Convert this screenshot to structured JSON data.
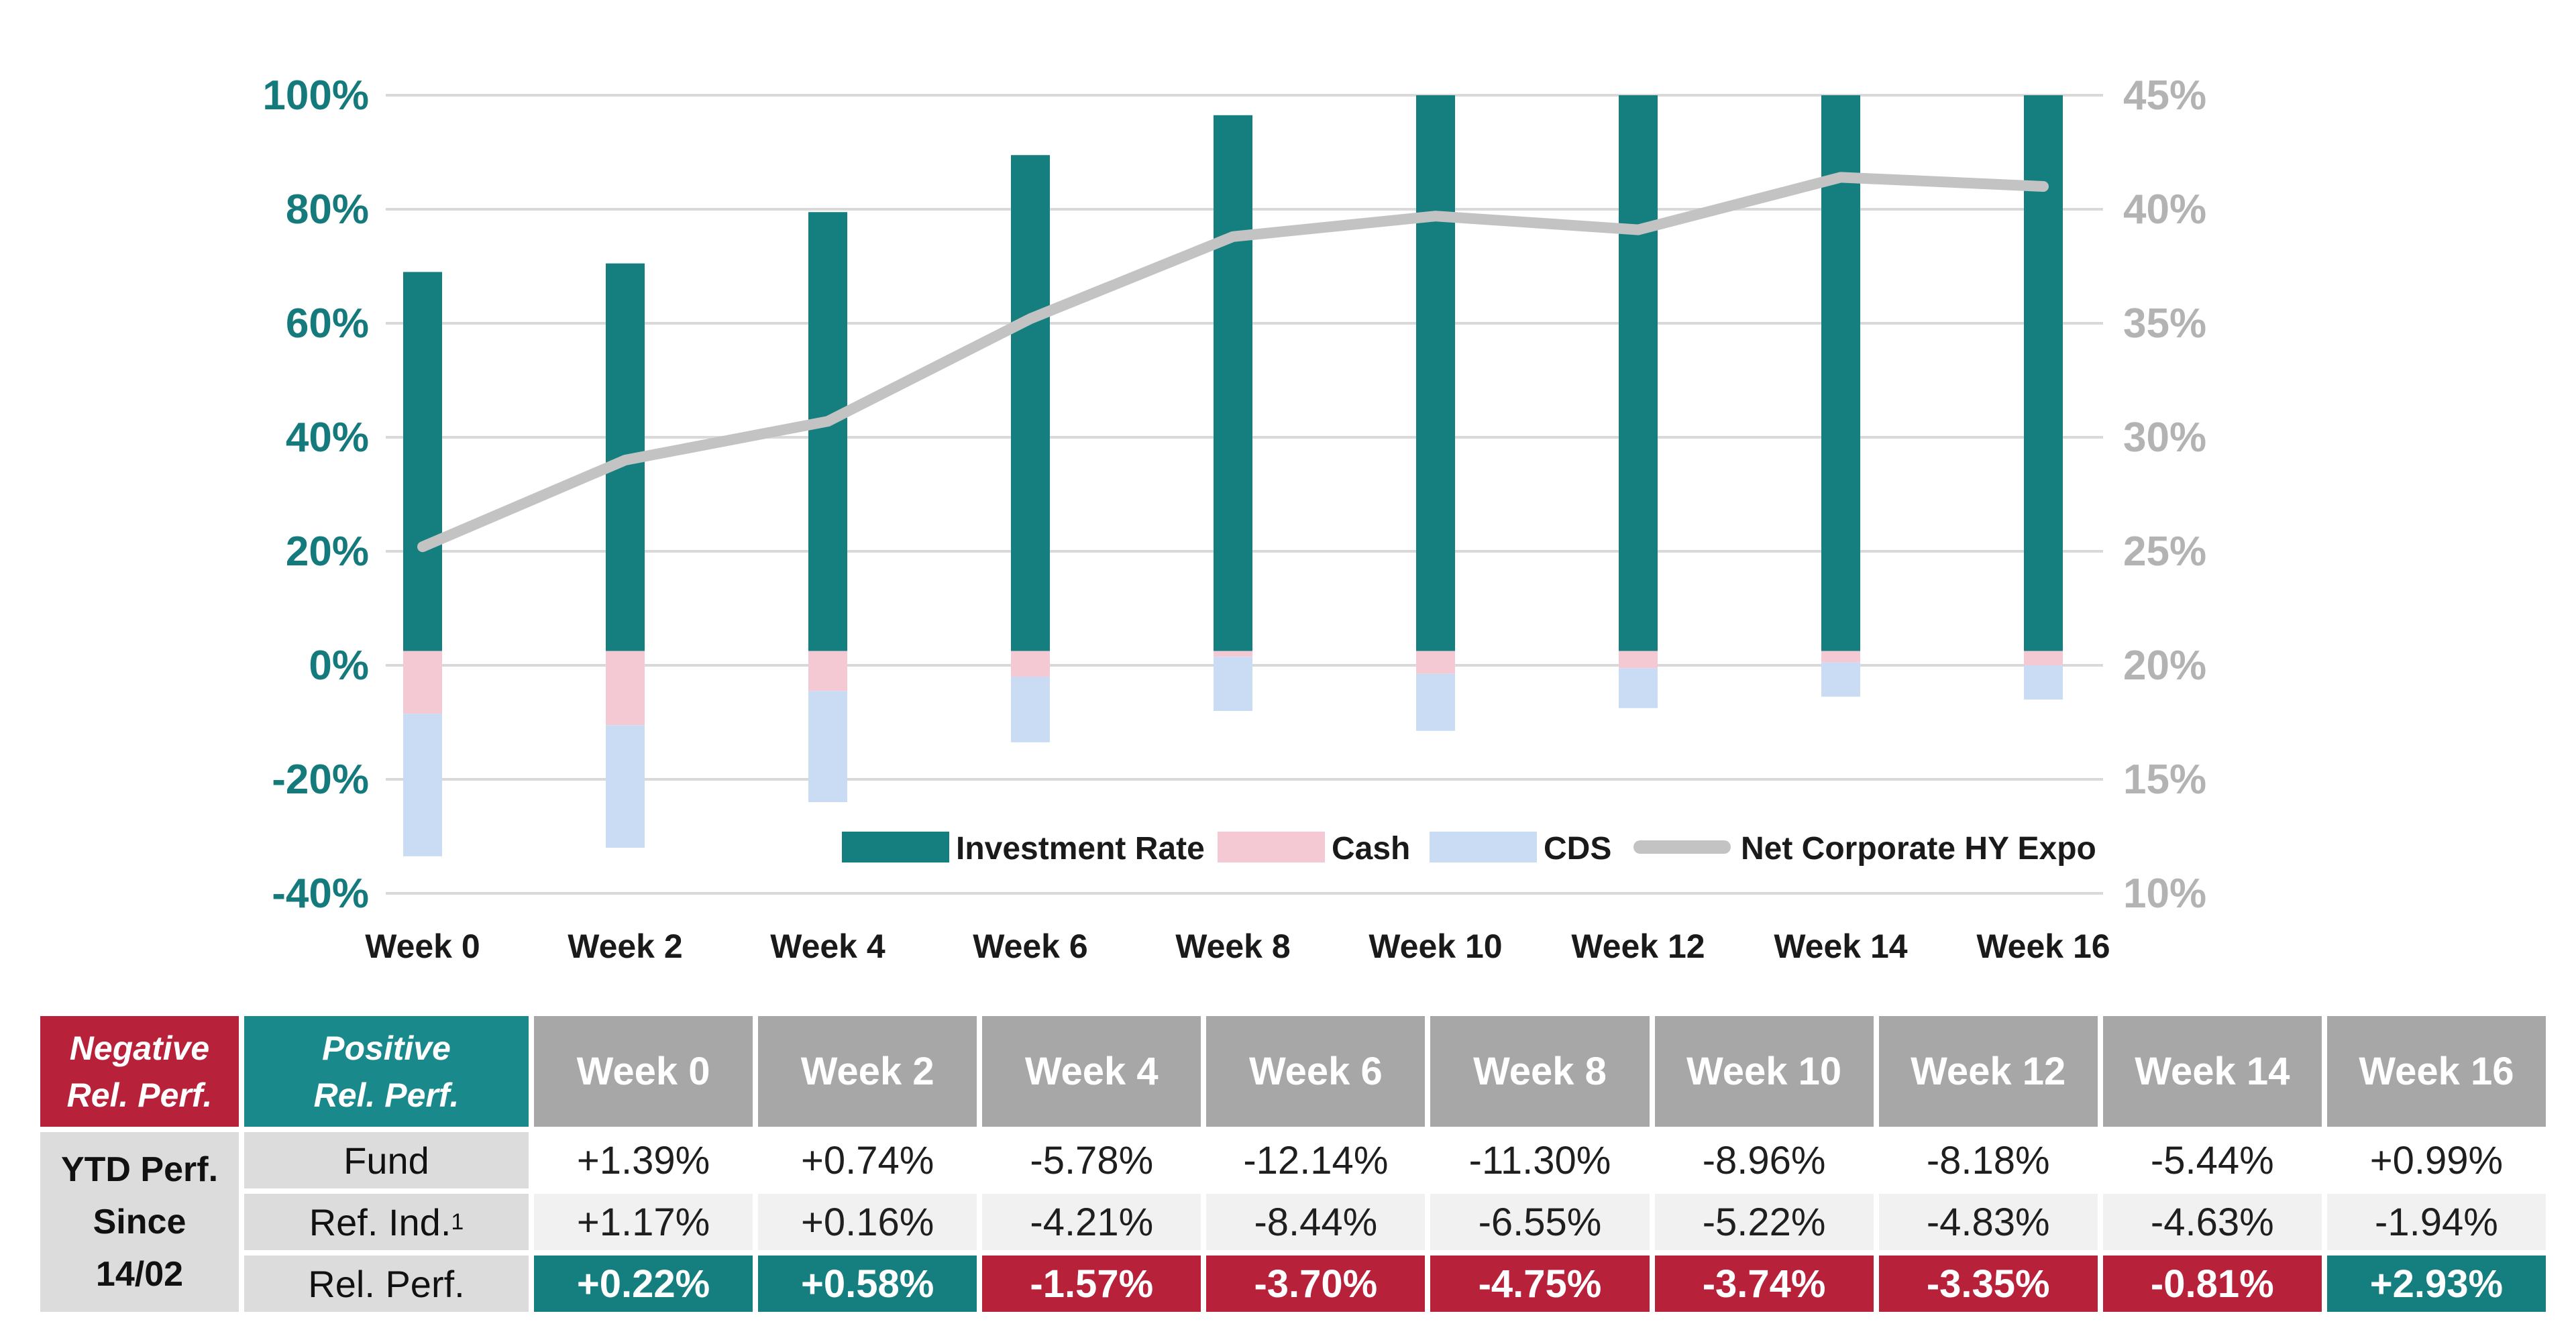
{
  "chart_data": {
    "type": "combo-stacked-bar-line",
    "title": "",
    "categories": [
      "Week 0",
      "Week 2",
      "Week 4",
      "Week 6",
      "Week 8",
      "Week 10",
      "Week 12",
      "Week 14",
      "Week 16"
    ],
    "left_axis": {
      "ticks": [
        "100%",
        "80%",
        "60%",
        "40%",
        "20%",
        "0%",
        "-20%",
        "-40%"
      ],
      "min": -40,
      "max": 100
    },
    "right_axis": {
      "ticks": [
        "45%",
        "40%",
        "35%",
        "30%",
        "25%",
        "20%",
        "15%",
        "10%"
      ],
      "min": 10,
      "max": 45
    },
    "stacked_bars_pct_left_axis": {
      "investment_rate_top": [
        69,
        70.5,
        79.5,
        89.5,
        96.5,
        100,
        100,
        100,
        100
      ],
      "investment_rate_bottom_cash_top": [
        2.5,
        2.5,
        2.5,
        2.5,
        2.5,
        2.5,
        2.5,
        2.5,
        2.5
      ],
      "cash_bottom_cds_top": [
        -8.5,
        -10.5,
        -4.5,
        -2,
        1.5,
        -1.5,
        -0.5,
        0.5,
        0
      ],
      "cds_bottom": [
        -33.5,
        -32,
        -24,
        -13.5,
        -8,
        -11.5,
        -7.5,
        -5.5,
        -6
      ]
    },
    "line_series": {
      "name": "Net Corporate HY Expo",
      "axis": "right",
      "values_pct": [
        25.2,
        29.0,
        30.7,
        35.2,
        38.8,
        39.7,
        39.1,
        41.4,
        41.0
      ]
    },
    "legend": [
      "Investment Rate",
      "Cash",
      "CDS",
      "Net Corporate HY Expo"
    ],
    "legend_position": "inside-bottom-right",
    "grid": true,
    "colors": {
      "investment_rate": "#157f80",
      "cash": "#f5c9d4",
      "cds": "#cadcf4",
      "line": "#c3c3c3",
      "gridline": "#d9d9d9",
      "left_axis_text": "#147a7c",
      "right_axis_text": "#b3b3b3",
      "x_axis_text": "#1a1a1a"
    }
  },
  "table": {
    "header": {
      "negative": "Negative\nRel. Perf.",
      "positive": "Positive\nRel. Perf.",
      "weeks": [
        "Week 0",
        "Week 2",
        "Week 4",
        "Week 6",
        "Week 8",
        "Week 10",
        "Week 12",
        "Week 14",
        "Week 16"
      ]
    },
    "row_group_label": "YTD Perf.\nSince\n14/02",
    "rows": [
      {
        "label": "Fund",
        "values": [
          "+1.39%",
          "+0.74%",
          "-5.78%",
          "-12.14%",
          "-11.30%",
          "-8.96%",
          "-8.18%",
          "-5.44%",
          "+0.99%"
        ]
      },
      {
        "label": "Ref. Ind.",
        "label_sup": "1",
        "values": [
          "+1.17%",
          "+0.16%",
          "-4.21%",
          "-8.44%",
          "-6.55%",
          "-5.22%",
          "-4.83%",
          "-4.63%",
          "-1.94%"
        ]
      },
      {
        "label": "Rel. Perf.",
        "values": [
          "+0.22%",
          "+0.58%",
          "-1.57%",
          "-3.70%",
          "-4.75%",
          "-3.74%",
          "-3.35%",
          "-0.81%",
          "+2.93%"
        ],
        "sentiment": [
          "pos",
          "pos",
          "neg",
          "neg",
          "neg",
          "neg",
          "neg",
          "neg",
          "pos"
        ],
        "sentiment_colors": {
          "pos": "#157f80",
          "neg": "#b8213a"
        }
      }
    ]
  }
}
